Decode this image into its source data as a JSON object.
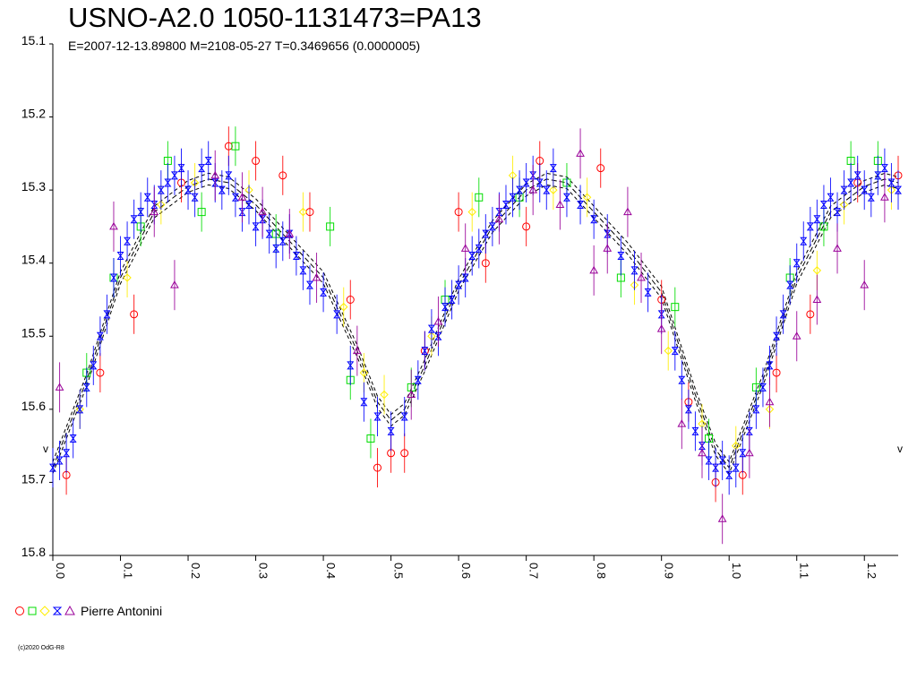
{
  "chart_data": {
    "type": "scatter",
    "title": "USNO-A2.0 1050-1131473=PA13",
    "subtitle": "E=2007-12-13.89800    M=2108-05-27    T=0.3469656 (0.0000005)",
    "xlabel": "",
    "ylabel": "",
    "xlim": [
      0.0,
      1.25
    ],
    "ylim": [
      15.1,
      15.8
    ],
    "y_inverted": true,
    "x_ticks": [
      "0.0",
      "0.1",
      "0.2",
      "0.3",
      "0.4",
      "0.5",
      "0.6",
      "0.7",
      "0.8",
      "0.9",
      "1.0",
      "1.1",
      "1.2"
    ],
    "y_ticks": [
      "15.1",
      "15.2",
      "15.3",
      "15.4",
      "15.5",
      "15.6",
      "15.7",
      "15.8"
    ],
    "side_markers": [
      "v",
      "v"
    ],
    "grid": false,
    "legend_position": "bottom-left",
    "observer": "Pierre Antonini",
    "fit_curve": {
      "x": [
        0.0,
        0.05,
        0.1,
        0.15,
        0.2,
        0.23,
        0.26,
        0.3,
        0.35,
        0.4,
        0.45,
        0.48,
        0.5,
        0.52,
        0.55,
        0.6,
        0.65,
        0.7,
        0.73,
        0.76,
        0.8,
        0.85,
        0.9,
        0.95,
        0.98,
        1.0,
        1.05,
        1.1,
        1.15,
        1.2,
        1.23,
        1.25
      ],
      "y": [
        15.68,
        15.56,
        15.42,
        15.33,
        15.295,
        15.285,
        15.29,
        15.32,
        15.37,
        15.42,
        15.52,
        15.59,
        15.615,
        15.6,
        15.54,
        15.43,
        15.35,
        15.3,
        15.285,
        15.29,
        15.33,
        15.38,
        15.44,
        15.58,
        15.655,
        15.68,
        15.56,
        15.42,
        15.33,
        15.295,
        15.285,
        15.29
      ]
    },
    "series": [
      {
        "marker": "circle",
        "color": "#ff0000",
        "x": [
          0.02,
          0.07,
          0.12,
          0.19,
          0.26,
          0.3,
          0.34,
          0.38,
          0.44,
          0.48,
          0.5,
          0.52,
          0.55,
          0.6,
          0.64,
          0.7,
          0.72,
          0.81,
          0.9,
          0.94,
          0.98,
          1.02,
          1.07,
          1.12,
          1.19,
          1.25
        ],
        "y": [
          15.69,
          15.55,
          15.47,
          15.29,
          15.24,
          15.26,
          15.28,
          15.33,
          15.45,
          15.68,
          15.66,
          15.66,
          15.52,
          15.33,
          15.4,
          15.35,
          15.26,
          15.27,
          15.45,
          15.59,
          15.7,
          15.69,
          15.55,
          15.47,
          15.29,
          15.28
        ]
      },
      {
        "marker": "square",
        "color": "#00dd00",
        "x": [
          0.05,
          0.09,
          0.13,
          0.17,
          0.22,
          0.27,
          0.33,
          0.41,
          0.44,
          0.47,
          0.53,
          0.58,
          0.63,
          0.69,
          0.76,
          0.84,
          0.92,
          0.97,
          1.04,
          1.09,
          1.14,
          1.18,
          1.22
        ],
        "y": [
          15.55,
          15.42,
          15.35,
          15.26,
          15.33,
          15.24,
          15.36,
          15.35,
          15.56,
          15.64,
          15.57,
          15.45,
          15.31,
          15.31,
          15.29,
          15.42,
          15.46,
          15.64,
          15.57,
          15.42,
          15.35,
          15.26,
          15.26
        ]
      },
      {
        "marker": "diamond",
        "color": "#ffee00",
        "x": [
          0.04,
          0.11,
          0.16,
          0.21,
          0.29,
          0.37,
          0.43,
          0.46,
          0.49,
          0.56,
          0.62,
          0.68,
          0.74,
          0.79,
          0.86,
          0.91,
          0.96,
          1.01,
          1.06,
          1.13,
          1.17,
          1.24
        ],
        "y": [
          15.6,
          15.42,
          15.32,
          15.29,
          15.3,
          15.33,
          15.46,
          15.55,
          15.58,
          15.5,
          15.33,
          15.28,
          15.3,
          15.31,
          15.43,
          15.52,
          15.62,
          15.65,
          15.6,
          15.41,
          15.32,
          15.3
        ]
      },
      {
        "marker": "hourglass",
        "color": "#0000ff",
        "x": [
          0.0,
          0.01,
          0.02,
          0.03,
          0.04,
          0.05,
          0.06,
          0.07,
          0.08,
          0.09,
          0.1,
          0.11,
          0.12,
          0.13,
          0.14,
          0.15,
          0.16,
          0.17,
          0.18,
          0.19,
          0.2,
          0.21,
          0.22,
          0.23,
          0.24,
          0.25,
          0.26,
          0.27,
          0.28,
          0.29,
          0.3,
          0.31,
          0.32,
          0.33,
          0.34,
          0.35,
          0.36,
          0.37,
          0.38,
          0.4,
          0.42,
          0.44,
          0.46,
          0.48,
          0.5,
          0.52,
          0.54,
          0.55,
          0.56,
          0.57,
          0.58,
          0.59,
          0.6,
          0.61,
          0.62,
          0.63,
          0.64,
          0.65,
          0.66,
          0.67,
          0.68,
          0.69,
          0.7,
          0.71,
          0.72,
          0.73,
          0.74,
          0.76,
          0.78,
          0.8,
          0.82,
          0.84,
          0.86,
          0.88,
          0.9,
          0.92,
          0.93,
          0.94,
          0.95,
          0.96,
          0.97,
          0.98,
          0.99,
          1.0,
          1.01,
          1.02,
          1.03,
          1.04,
          1.05,
          1.06,
          1.07,
          1.08,
          1.09,
          1.1,
          1.11,
          1.12,
          1.13,
          1.14,
          1.15,
          1.16,
          1.17,
          1.18,
          1.19,
          1.2,
          1.21,
          1.22,
          1.23,
          1.24,
          1.25
        ],
        "y": [
          15.68,
          15.67,
          15.66,
          15.64,
          15.6,
          15.57,
          15.54,
          15.5,
          15.47,
          15.42,
          15.39,
          15.37,
          15.34,
          15.33,
          15.31,
          15.32,
          15.3,
          15.29,
          15.28,
          15.27,
          15.3,
          15.31,
          15.27,
          15.26,
          15.29,
          15.3,
          15.28,
          15.31,
          15.33,
          15.32,
          15.35,
          15.34,
          15.36,
          15.38,
          15.37,
          15.36,
          15.39,
          15.41,
          15.43,
          15.44,
          15.47,
          15.54,
          15.59,
          15.61,
          15.63,
          15.61,
          15.56,
          15.52,
          15.49,
          15.5,
          15.46,
          15.45,
          15.43,
          15.42,
          15.39,
          15.38,
          15.36,
          15.35,
          15.33,
          15.32,
          15.31,
          15.3,
          15.29,
          15.28,
          15.29,
          15.3,
          15.27,
          15.31,
          15.32,
          15.34,
          15.36,
          15.39,
          15.41,
          15.44,
          15.47,
          15.52,
          15.56,
          15.6,
          15.63,
          15.65,
          15.67,
          15.68,
          15.67,
          15.69,
          15.68,
          15.66,
          15.63,
          15.6,
          15.57,
          15.54,
          15.5,
          15.47,
          15.43,
          15.4,
          15.37,
          15.35,
          15.34,
          15.32,
          15.31,
          15.33,
          15.3,
          15.29,
          15.28,
          15.3,
          15.31,
          15.28,
          15.27,
          15.29,
          15.3
        ]
      },
      {
        "marker": "triangle",
        "color": "#990099",
        "x": [
          0.01,
          0.09,
          0.15,
          0.18,
          0.24,
          0.28,
          0.31,
          0.35,
          0.39,
          0.45,
          0.53,
          0.57,
          0.61,
          0.66,
          0.71,
          0.75,
          0.78,
          0.8,
          0.82,
          0.85,
          0.87,
          0.9,
          0.93,
          0.96,
          0.99,
          1.03,
          1.06,
          1.1,
          1.13,
          1.16,
          1.2,
          1.23
        ],
        "y": [
          15.57,
          15.35,
          15.33,
          15.43,
          15.28,
          15.31,
          15.33,
          15.36,
          15.42,
          15.52,
          15.58,
          15.48,
          15.38,
          15.34,
          15.3,
          15.32,
          15.25,
          15.41,
          15.38,
          15.33,
          15.42,
          15.49,
          15.62,
          15.66,
          15.75,
          15.66,
          15.59,
          15.5,
          15.45,
          15.38,
          15.43,
          15.31
        ]
      }
    ]
  },
  "legend_symbols": [
    "circle",
    "square",
    "diamond",
    "hourglass",
    "triangle"
  ]
}
